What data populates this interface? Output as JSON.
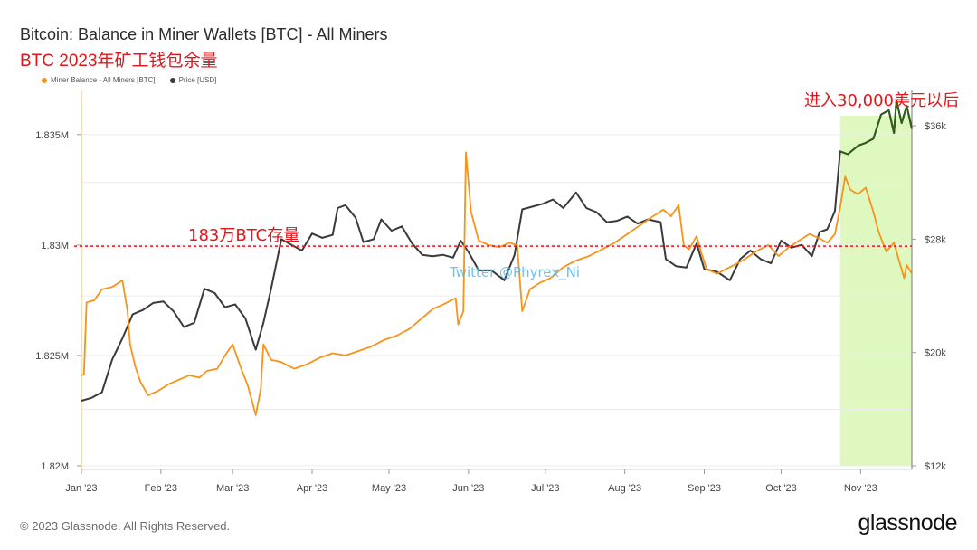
{
  "page": {
    "title": "Bitcoin: Balance in Miner Wallets [BTC] - All Miners",
    "subtitle_cn": "BTC 2023年矿工钱包余量",
    "copyright": "© 2023 Glassnode. All Rights Reserved.",
    "brand": "glassnode",
    "watermark": "Twitter @Phyrex_Ni"
  },
  "colors": {
    "miner_balance": "#f7931a",
    "price": "#3a3a3a",
    "annotation": "#e3151b",
    "highlight_fill": "#d9f7b4",
    "grid": "#ececec"
  },
  "chart_data": {
    "type": "line",
    "x_tick_labels": [
      "Jan '23",
      "Feb '23",
      "Mar '23",
      "Apr '23",
      "May '23",
      "Jun '23",
      "Jul '23",
      "Aug '23",
      "Sep '23",
      "Oct '23",
      "Nov '23"
    ],
    "x_range": [
      "2023-01-01",
      "2023-11-21"
    ],
    "y_left": {
      "tick_labels": [
        "1.82M",
        "1.825M",
        "1.83M",
        "1.835M"
      ],
      "ticks": [
        1820000,
        1825000,
        1830000,
        1835000
      ],
      "range": [
        1820000,
        1837000
      ]
    },
    "y_right": {
      "tick_labels": [
        "$12k",
        "$20k",
        "$28k",
        "$36k"
      ],
      "ticks": [
        12000,
        20000,
        28000,
        36000
      ],
      "scale": "linear",
      "range": [
        12000,
        38500
      ]
    },
    "legend": [
      "Miner Balance - All Miners [BTC]",
      "Price [USD]"
    ],
    "legend_position": "top-left",
    "grid": true,
    "series": [
      {
        "name": "Miner Balance - All Miners [BTC]",
        "axis": "left",
        "points": [
          [
            "2023-01-01",
            1824100
          ],
          [
            "2023-01-02",
            1824150
          ],
          [
            "2023-01-03",
            1827400
          ],
          [
            "2023-01-06",
            1827500
          ],
          [
            "2023-01-09",
            1828000
          ],
          [
            "2023-01-13",
            1828100
          ],
          [
            "2023-01-17",
            1828400
          ],
          [
            "2023-01-19",
            1827000
          ],
          [
            "2023-01-20",
            1825500
          ],
          [
            "2023-01-22",
            1824500
          ],
          [
            "2023-01-24",
            1823800
          ],
          [
            "2023-01-27",
            1823200
          ],
          [
            "2023-01-31",
            1823400
          ],
          [
            "2023-02-04",
            1823700
          ],
          [
            "2023-02-08",
            1823900
          ],
          [
            "2023-02-12",
            1824100
          ],
          [
            "2023-02-16",
            1824000
          ],
          [
            "2023-02-19",
            1824300
          ],
          [
            "2023-02-23",
            1824400
          ],
          [
            "2023-02-26",
            1825000
          ],
          [
            "2023-03-01",
            1825500
          ],
          [
            "2023-03-04",
            1824500
          ],
          [
            "2023-03-07",
            1823600
          ],
          [
            "2023-03-10",
            1822300
          ],
          [
            "2023-03-12",
            1823500
          ],
          [
            "2023-03-13",
            1825500
          ],
          [
            "2023-03-16",
            1824800
          ],
          [
            "2023-03-20",
            1824700
          ],
          [
            "2023-03-25",
            1824400
          ],
          [
            "2023-03-30",
            1824600
          ],
          [
            "2023-04-04",
            1824900
          ],
          [
            "2023-04-09",
            1825100
          ],
          [
            "2023-04-14",
            1825000
          ],
          [
            "2023-04-19",
            1825200
          ],
          [
            "2023-04-24",
            1825400
          ],
          [
            "2023-04-29",
            1825700
          ],
          [
            "2023-05-04",
            1825900
          ],
          [
            "2023-05-09",
            1826200
          ],
          [
            "2023-05-14",
            1826700
          ],
          [
            "2023-05-18",
            1827100
          ],
          [
            "2023-05-22",
            1827300
          ],
          [
            "2023-05-27",
            1827600
          ],
          [
            "2023-05-28",
            1826400
          ],
          [
            "2023-05-30",
            1827000
          ],
          [
            "2023-05-31",
            1834200
          ],
          [
            "2023-06-02",
            1831500
          ],
          [
            "2023-06-05",
            1830200
          ],
          [
            "2023-06-09",
            1830000
          ],
          [
            "2023-06-13",
            1829900
          ],
          [
            "2023-06-17",
            1830100
          ],
          [
            "2023-06-20",
            1830000
          ],
          [
            "2023-06-22",
            1827000
          ],
          [
            "2023-06-25",
            1828000
          ],
          [
            "2023-06-29",
            1828300
          ],
          [
            "2023-07-03",
            1828500
          ],
          [
            "2023-07-08",
            1829000
          ],
          [
            "2023-07-13",
            1829300
          ],
          [
            "2023-07-18",
            1829500
          ],
          [
            "2023-07-23",
            1829800
          ],
          [
            "2023-07-28",
            1830100
          ],
          [
            "2023-08-02",
            1830500
          ],
          [
            "2023-08-07",
            1830900
          ],
          [
            "2023-08-12",
            1831300
          ],
          [
            "2023-08-16",
            1831600
          ],
          [
            "2023-08-19",
            1831300
          ],
          [
            "2023-08-22",
            1831800
          ],
          [
            "2023-08-24",
            1830000
          ],
          [
            "2023-08-26",
            1829800
          ],
          [
            "2023-08-29",
            1830400
          ],
          [
            "2023-08-31",
            1829600
          ],
          [
            "2023-09-02",
            1828900
          ],
          [
            "2023-09-06",
            1828700
          ],
          [
            "2023-09-11",
            1829000
          ],
          [
            "2023-09-16",
            1829300
          ],
          [
            "2023-09-21",
            1829700
          ],
          [
            "2023-09-26",
            1830000
          ],
          [
            "2023-09-30",
            1829500
          ],
          [
            "2023-10-04",
            1829900
          ],
          [
            "2023-10-08",
            1830200
          ],
          [
            "2023-10-12",
            1830500
          ],
          [
            "2023-10-16",
            1830300
          ],
          [
            "2023-10-19",
            1830100
          ],
          [
            "2023-10-22",
            1830500
          ],
          [
            "2023-10-24",
            1831700
          ],
          [
            "2023-10-26",
            1833100
          ],
          [
            "2023-10-28",
            1832500
          ],
          [
            "2023-10-31",
            1832300
          ],
          [
            "2023-11-03",
            1832600
          ],
          [
            "2023-11-06",
            1831500
          ],
          [
            "2023-11-08",
            1830600
          ],
          [
            "2023-11-11",
            1829700
          ],
          [
            "2023-11-14",
            1830100
          ],
          [
            "2023-11-16",
            1829300
          ],
          [
            "2023-11-18",
            1828500
          ],
          [
            "2023-11-19",
            1829100
          ],
          [
            "2023-11-21",
            1828700
          ]
        ]
      },
      {
        "name": "Price [USD]",
        "axis": "right",
        "points": [
          [
            "2023-01-01",
            16600
          ],
          [
            "2023-01-05",
            16800
          ],
          [
            "2023-01-09",
            17200
          ],
          [
            "2023-01-13",
            19500
          ],
          [
            "2023-01-17",
            21000
          ],
          [
            "2023-01-21",
            22700
          ],
          [
            "2023-01-25",
            23000
          ],
          [
            "2023-01-29",
            23500
          ],
          [
            "2023-02-02",
            23600
          ],
          [
            "2023-02-06",
            22900
          ],
          [
            "2023-02-10",
            21800
          ],
          [
            "2023-02-14",
            22100
          ],
          [
            "2023-02-18",
            24500
          ],
          [
            "2023-02-22",
            24200
          ],
          [
            "2023-02-26",
            23200
          ],
          [
            "2023-03-02",
            23400
          ],
          [
            "2023-03-06",
            22400
          ],
          [
            "2023-03-10",
            20200
          ],
          [
            "2023-03-13",
            22100
          ],
          [
            "2023-03-16",
            24500
          ],
          [
            "2023-03-20",
            28000
          ],
          [
            "2023-03-24",
            27600
          ],
          [
            "2023-03-28",
            27200
          ],
          [
            "2023-04-01",
            28400
          ],
          [
            "2023-04-05",
            28100
          ],
          [
            "2023-04-09",
            28300
          ],
          [
            "2023-04-11",
            30200
          ],
          [
            "2023-04-14",
            30400
          ],
          [
            "2023-04-18",
            29500
          ],
          [
            "2023-04-21",
            27800
          ],
          [
            "2023-04-25",
            28000
          ],
          [
            "2023-04-28",
            29400
          ],
          [
            "2023-05-02",
            28600
          ],
          [
            "2023-05-06",
            28900
          ],
          [
            "2023-05-10",
            27700
          ],
          [
            "2023-05-14",
            26900
          ],
          [
            "2023-05-18",
            26800
          ],
          [
            "2023-05-22",
            26900
          ],
          [
            "2023-05-26",
            26700
          ],
          [
            "2023-05-29",
            27900
          ],
          [
            "2023-06-01",
            27100
          ],
          [
            "2023-06-05",
            25800
          ],
          [
            "2023-06-10",
            25800
          ],
          [
            "2023-06-15",
            25100
          ],
          [
            "2023-06-19",
            26900
          ],
          [
            "2023-06-22",
            30100
          ],
          [
            "2023-06-26",
            30300
          ],
          [
            "2023-06-30",
            30500
          ],
          [
            "2023-07-04",
            30800
          ],
          [
            "2023-07-08",
            30200
          ],
          [
            "2023-07-13",
            31300
          ],
          [
            "2023-07-17",
            30200
          ],
          [
            "2023-07-21",
            29900
          ],
          [
            "2023-07-25",
            29200
          ],
          [
            "2023-07-29",
            29300
          ],
          [
            "2023-08-02",
            29600
          ],
          [
            "2023-08-06",
            29100
          ],
          [
            "2023-08-10",
            29400
          ],
          [
            "2023-08-15",
            29200
          ],
          [
            "2023-08-17",
            26600
          ],
          [
            "2023-08-21",
            26100
          ],
          [
            "2023-08-25",
            26000
          ],
          [
            "2023-08-29",
            27700
          ],
          [
            "2023-09-01",
            25900
          ],
          [
            "2023-09-06",
            25700
          ],
          [
            "2023-09-11",
            25100
          ],
          [
            "2023-09-15",
            26600
          ],
          [
            "2023-09-19",
            27200
          ],
          [
            "2023-09-23",
            26600
          ],
          [
            "2023-09-27",
            26300
          ],
          [
            "2023-10-01",
            27900
          ],
          [
            "2023-10-05",
            27400
          ],
          [
            "2023-10-09",
            27600
          ],
          [
            "2023-10-13",
            26800
          ],
          [
            "2023-10-16",
            28500
          ],
          [
            "2023-10-19",
            28700
          ],
          [
            "2023-10-22",
            30000
          ],
          [
            "2023-10-24",
            34200
          ],
          [
            "2023-10-27",
            34000
          ],
          [
            "2023-10-31",
            34600
          ],
          [
            "2023-11-03",
            34800
          ],
          [
            "2023-11-06",
            35100
          ],
          [
            "2023-11-09",
            36800
          ],
          [
            "2023-11-12",
            37100
          ],
          [
            "2023-11-14",
            35500
          ],
          [
            "2023-11-15",
            37800
          ],
          [
            "2023-11-17",
            36200
          ],
          [
            "2023-11-19",
            37400
          ],
          [
            "2023-11-21",
            35800
          ]
        ]
      }
    ],
    "annotations": [
      {
        "text": "183万BTC存量",
        "type": "horizontal-line",
        "y": 1829950,
        "axis": "left",
        "style": "dotted",
        "color": "#e3151b"
      },
      {
        "text": "进入30,000美元以后",
        "type": "shaded-region",
        "x_start": "2023-10-24",
        "x_end": "2023-11-21",
        "color": "#d9f7b4"
      }
    ]
  }
}
